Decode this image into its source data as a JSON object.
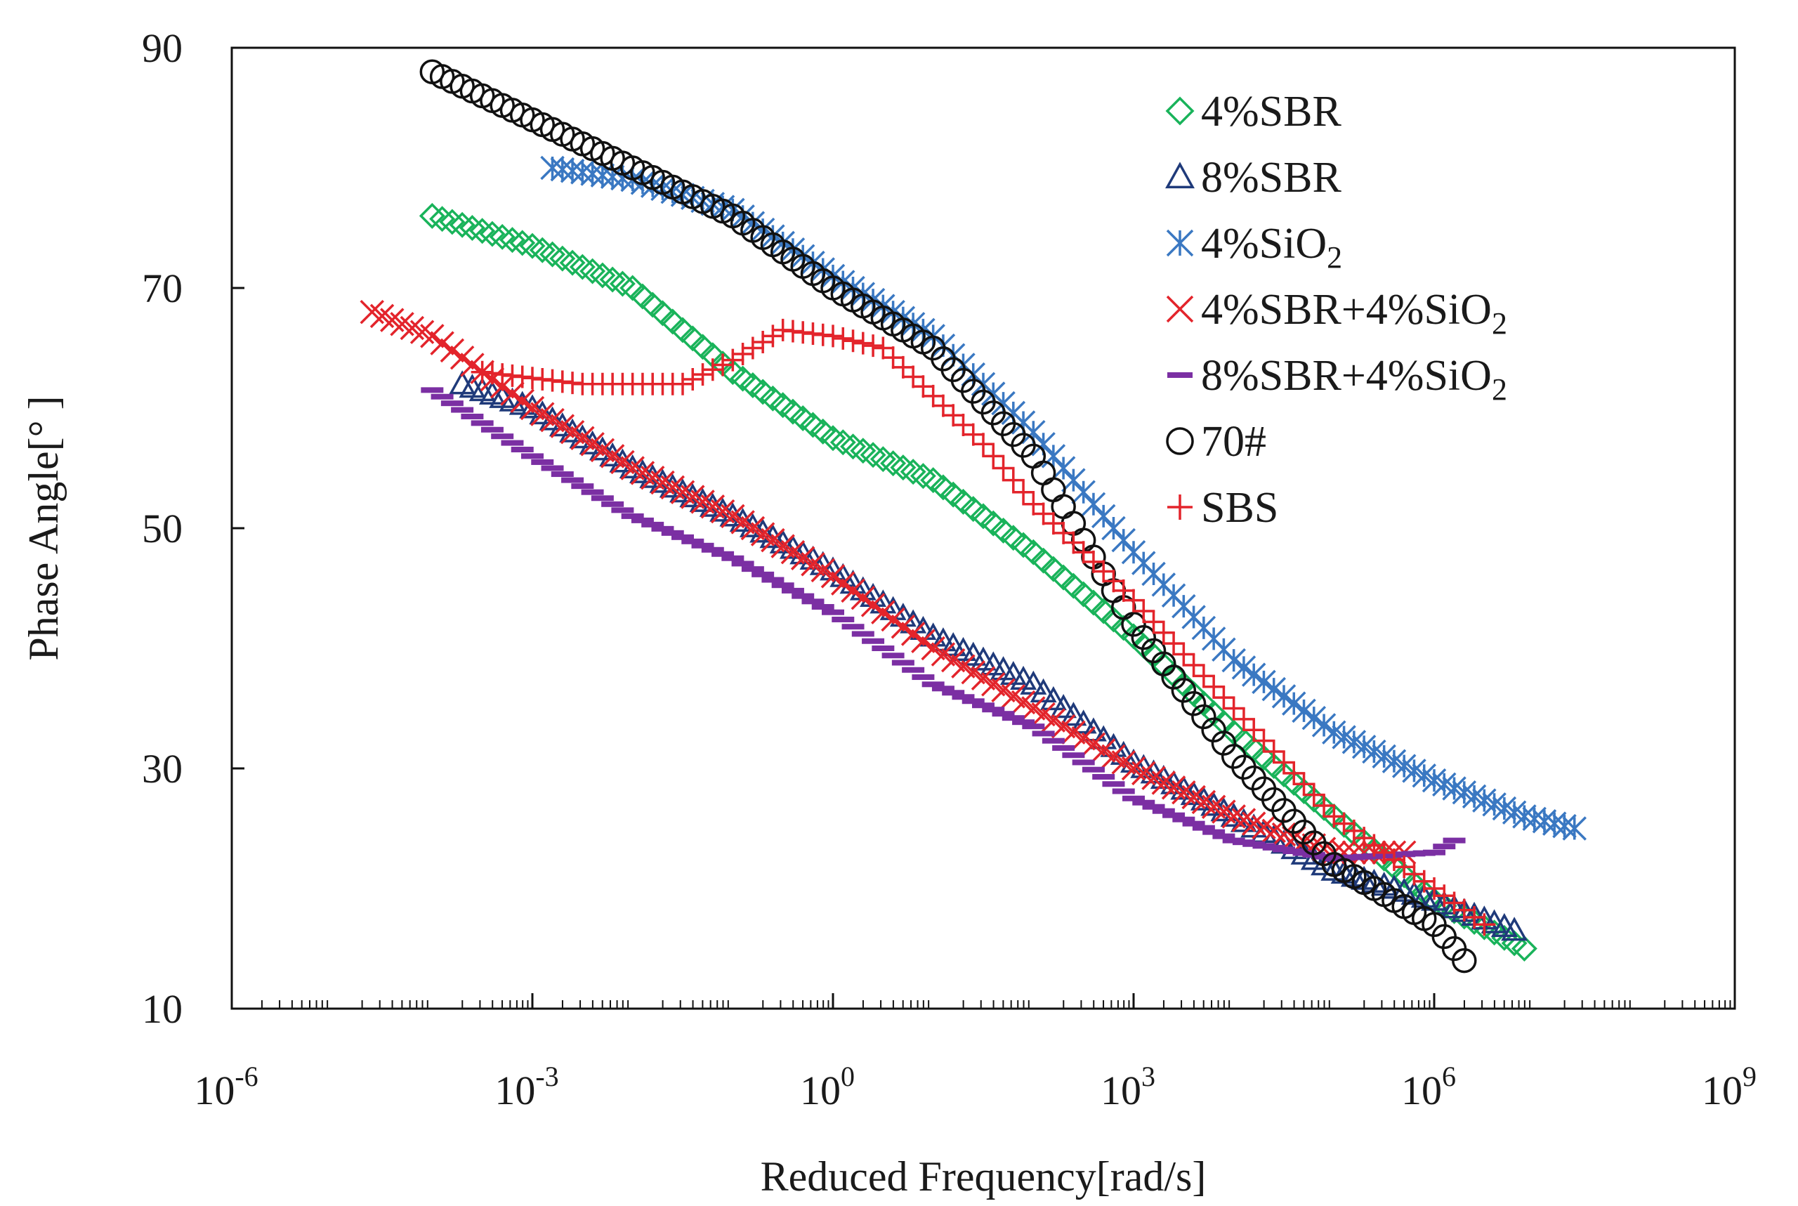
{
  "chart_data": {
    "type": "scatter",
    "title": "",
    "xlabel": "Reduced Frequency[rad/s]",
    "ylabel": "Phase Angle[° ]",
    "xscale": "log",
    "xlim_exp": [
      -6,
      9
    ],
    "ylim": [
      10,
      90
    ],
    "x_ticks": [
      {
        "base": "10",
        "exp": "-6",
        "value": -6
      },
      {
        "base": "10",
        "exp": "-3",
        "value": -3
      },
      {
        "base": "10",
        "exp": "0",
        "value": 0
      },
      {
        "base": "10",
        "exp": "3",
        "value": 3
      },
      {
        "base": "10",
        "exp": "6",
        "value": 6
      },
      {
        "base": "10",
        "exp": "9",
        "value": 9
      }
    ],
    "y_ticks": [
      "10",
      "30",
      "50",
      "70",
      "90"
    ],
    "grid": false,
    "legend_position": "top-right",
    "series": [
      {
        "name": "4%SBR",
        "label_main": "4%SBR",
        "label_sub": "",
        "label_tail": "",
        "marker": "diamond",
        "color": "#19b35a",
        "x_log": [
          -4,
          -3,
          -2,
          -1,
          0,
          1,
          2,
          3,
          4,
          5,
          6,
          6.9
        ],
        "y": [
          76,
          73.5,
          70,
          63,
          57.5,
          54,
          48,
          41,
          33,
          26,
          19,
          15
        ]
      },
      {
        "name": "8%SBR",
        "label_main": "8%SBR",
        "label_sub": "",
        "label_tail": "",
        "marker": "triangle",
        "color": "#1f3a7a",
        "x_log": [
          -3.7,
          -3,
          -2,
          -1,
          0,
          1,
          2,
          3,
          4,
          5,
          6,
          6.8
        ],
        "y": [
          62,
          60,
          55,
          51,
          46.5,
          41,
          37,
          30.5,
          26,
          21.5,
          19,
          16.5
        ]
      },
      {
        "name": "4%SiO2",
        "label_main": "4%SiO",
        "label_sub": "2",
        "label_tail": "",
        "marker": "asterisk",
        "color": "#3a78c2",
        "x_log": [
          -2.8,
          -2,
          -1,
          0,
          1,
          2,
          3,
          4,
          5,
          6,
          6.9,
          7.4
        ],
        "y": [
          80,
          79,
          76.5,
          71,
          66,
          58,
          48,
          39,
          33,
          29,
          26,
          25
        ]
      },
      {
        "name": "4%SBR+4%SiO2",
        "label_main": "4%SBR+4%SiO",
        "label_sub": "2",
        "label_tail": "",
        "marker": "x",
        "color": "#e3242b",
        "x_log": [
          -4.6,
          -4,
          -3,
          -2,
          -1,
          0,
          1,
          2,
          3,
          4,
          5,
          5.7
        ],
        "y": [
          68,
          66,
          60,
          55,
          51,
          46,
          40,
          35,
          30,
          26,
          23,
          23
        ]
      },
      {
        "name": "8%SBR+4%SiO2",
        "label_main": "8%SBR+4%SiO",
        "label_sub": "2",
        "label_tail": "",
        "marker": "dash",
        "color": "#7b2fa3",
        "x_log": [
          -4,
          -3,
          -2,
          -1,
          0,
          1,
          2,
          3,
          4,
          5,
          6,
          6.2
        ],
        "y": [
          61.5,
          56,
          51,
          47.5,
          43,
          37,
          33.5,
          27.5,
          24,
          22.5,
          23,
          24
        ]
      },
      {
        "name": "70#",
        "label_main": "70#",
        "label_sub": "",
        "label_tail": "",
        "marker": "circle",
        "color": "#111111",
        "x_log": [
          -4,
          -3,
          -2,
          -1,
          0,
          1,
          2,
          3,
          4,
          5,
          6,
          6.3
        ],
        "y": [
          88,
          84,
          80,
          76,
          70,
          65,
          56,
          42,
          31,
          22,
          17,
          14
        ]
      },
      {
        "name": "SBS",
        "label_main": "SBS",
        "label_sub": "",
        "label_tail": "",
        "marker": "plus",
        "color": "#e3242b",
        "x_log": [
          -3.5,
          -2.5,
          -1.5,
          -1,
          -0.5,
          0,
          0.5,
          1,
          1.5,
          2,
          3,
          4,
          5,
          6,
          6.5
        ],
        "y": [
          63,
          62,
          62,
          64,
          66.5,
          66,
          65,
          61,
          57,
          52,
          44,
          35,
          26,
          20,
          17
        ]
      }
    ]
  }
}
